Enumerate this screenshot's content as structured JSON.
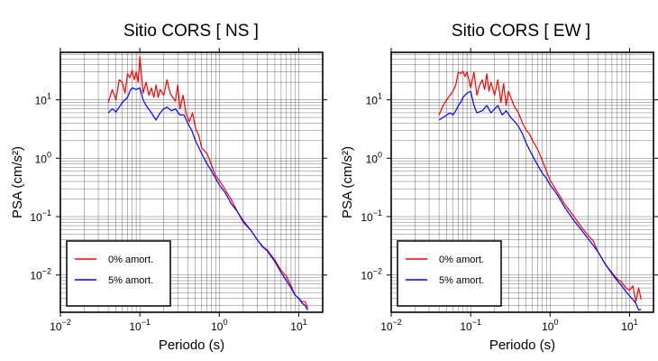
{
  "chart_data": [
    {
      "type": "line",
      "title": "Sitio CORS [ NS ]",
      "xlabel": "Periodo (s)",
      "ylabel": "PSA (cm/s²)",
      "xscale": "log",
      "yscale": "log",
      "xlim": [
        0.01,
        20
      ],
      "ylim": [
        0.0023,
        65
      ],
      "grid": true,
      "legend_position": "bottom-left",
      "x_ticks": [
        {
          "base": "10",
          "exp": "−2"
        },
        {
          "base": "10",
          "exp": "−1"
        },
        {
          "base": "10",
          "exp": "0"
        },
        {
          "base": "10",
          "exp": "1"
        }
      ],
      "y_ticks": [
        {
          "base": "10",
          "exp": "−2"
        },
        {
          "base": "10",
          "exp": "−1"
        },
        {
          "base": "10",
          "exp": "0"
        },
        {
          "base": "10",
          "exp": "1"
        }
      ],
      "series": [
        {
          "name": "0% amort.",
          "color": "#ff0000",
          "x": [
            0.04,
            0.045,
            0.05,
            0.055,
            0.06,
            0.065,
            0.07,
            0.075,
            0.08,
            0.085,
            0.09,
            0.095,
            0.1,
            0.105,
            0.11,
            0.12,
            0.13,
            0.14,
            0.15,
            0.16,
            0.17,
            0.18,
            0.2,
            0.22,
            0.24,
            0.26,
            0.28,
            0.3,
            0.32,
            0.35,
            0.38,
            0.42,
            0.46,
            0.5,
            0.55,
            0.6,
            0.7,
            0.8,
            0.9,
            1.0,
            1.2,
            1.4,
            1.7,
            2.0,
            2.5,
            3.0,
            3.5,
            4.0,
            5.0,
            6.0,
            7.0,
            8.0,
            9.0,
            10.0,
            11.0,
            12.0,
            13.0
          ],
          "y": [
            9,
            15,
            10,
            22,
            20,
            13,
            28,
            24,
            32,
            22,
            30,
            20,
            55,
            26,
            13,
            20,
            12,
            16,
            11,
            18,
            11,
            15,
            12,
            22,
            13,
            11,
            9.5,
            18,
            7,
            12,
            6,
            4.2,
            6,
            3.3,
            2.5,
            1.5,
            1.2,
            0.75,
            0.5,
            0.42,
            0.28,
            0.2,
            0.12,
            0.08,
            0.058,
            0.04,
            0.03,
            0.027,
            0.018,
            0.012,
            0.0095,
            0.0065,
            0.0045,
            0.004,
            0.0035,
            0.0035,
            0.0027
          ]
        },
        {
          "name": "5% amort.",
          "color": "#0000ff",
          "x": [
            0.04,
            0.045,
            0.05,
            0.055,
            0.06,
            0.065,
            0.07,
            0.075,
            0.08,
            0.09,
            0.1,
            0.11,
            0.12,
            0.14,
            0.16,
            0.18,
            0.2,
            0.22,
            0.25,
            0.28,
            0.32,
            0.36,
            0.4,
            0.45,
            0.5,
            0.6,
            0.7,
            0.8,
            0.9,
            1.0,
            1.2,
            1.4,
            1.7,
            2.0,
            2.5,
            3.0,
            3.5,
            4.0,
            5.0,
            6.0,
            7.0,
            8.0,
            9.0,
            10.0,
            11.0,
            12.0,
            13.0
          ],
          "y": [
            6,
            7,
            6.2,
            7.5,
            9,
            10,
            11,
            14,
            16,
            15,
            16,
            10,
            8,
            6,
            4.5,
            6,
            7,
            7.5,
            6.5,
            7,
            5.5,
            5.5,
            4,
            3,
            2,
            1.2,
            0.8,
            0.6,
            0.45,
            0.35,
            0.25,
            0.17,
            0.12,
            0.085,
            0.058,
            0.04,
            0.031,
            0.026,
            0.017,
            0.011,
            0.008,
            0.006,
            0.0045,
            0.004,
            0.0033,
            0.003,
            0.0025
          ]
        }
      ]
    },
    {
      "type": "line",
      "title": "Sitio CORS [ EW ]",
      "xlabel": "Periodo (s)",
      "ylabel": "PSA (cm/s²)",
      "xscale": "log",
      "yscale": "log",
      "xlim": [
        0.01,
        20
      ],
      "ylim": [
        0.0023,
        65
      ],
      "grid": true,
      "legend_position": "bottom-left",
      "x_ticks": [
        {
          "base": "10",
          "exp": "−2"
        },
        {
          "base": "10",
          "exp": "−1"
        },
        {
          "base": "10",
          "exp": "0"
        },
        {
          "base": "10",
          "exp": "1"
        }
      ],
      "y_ticks": [
        {
          "base": "10",
          "exp": "−2"
        },
        {
          "base": "10",
          "exp": "−1"
        },
        {
          "base": "10",
          "exp": "0"
        },
        {
          "base": "10",
          "exp": "1"
        }
      ],
      "series": [
        {
          "name": "0% amort.",
          "color": "#ff0000",
          "x": [
            0.04,
            0.045,
            0.05,
            0.055,
            0.06,
            0.065,
            0.07,
            0.075,
            0.08,
            0.085,
            0.09,
            0.1,
            0.11,
            0.12,
            0.13,
            0.14,
            0.15,
            0.16,
            0.17,
            0.18,
            0.2,
            0.22,
            0.24,
            0.26,
            0.28,
            0.3,
            0.32,
            0.35,
            0.4,
            0.45,
            0.5,
            0.55,
            0.6,
            0.7,
            0.8,
            0.9,
            1.0,
            1.2,
            1.5,
            2.0,
            2.5,
            3.0,
            3.5,
            4.0,
            5.0,
            6.0,
            7.0,
            8.0,
            9.0,
            10.0,
            11.0,
            12.0,
            13.0,
            14.0
          ],
          "y": [
            5.5,
            8,
            10,
            12,
            14,
            18,
            30,
            28,
            31,
            25,
            30,
            16,
            30,
            12,
            18,
            22,
            15,
            28,
            14,
            20,
            12,
            22,
            9,
            19,
            8,
            14,
            11,
            8,
            6,
            4,
            3,
            2.6,
            2,
            1.4,
            0.9,
            0.6,
            0.42,
            0.28,
            0.17,
            0.1,
            0.065,
            0.048,
            0.038,
            0.025,
            0.015,
            0.011,
            0.0085,
            0.0075,
            0.006,
            0.0055,
            0.0065,
            0.0035,
            0.006,
            0.0038
          ]
        },
        {
          "name": "5% amort.",
          "color": "#0000ff",
          "x": [
            0.04,
            0.045,
            0.05,
            0.055,
            0.06,
            0.065,
            0.07,
            0.075,
            0.08,
            0.09,
            0.1,
            0.11,
            0.12,
            0.14,
            0.16,
            0.18,
            0.2,
            0.22,
            0.25,
            0.28,
            0.32,
            0.36,
            0.4,
            0.45,
            0.5,
            0.6,
            0.7,
            0.8,
            0.9,
            1.0,
            1.2,
            1.5,
            2.0,
            2.5,
            3.0,
            3.5,
            4.0,
            5.0,
            6.0,
            7.0,
            8.0,
            9.0,
            10.0,
            11.0,
            12.0,
            13.0,
            14.0
          ],
          "y": [
            4.5,
            5,
            5.5,
            6,
            5.5,
            6.5,
            8,
            9,
            11,
            13,
            14,
            8,
            6,
            6.5,
            8,
            6,
            7,
            8,
            5.5,
            6.5,
            5,
            4.2,
            3.5,
            2.6,
            1.8,
            1.1,
            0.75,
            0.55,
            0.45,
            0.35,
            0.25,
            0.15,
            0.085,
            0.058,
            0.042,
            0.032,
            0.025,
            0.015,
            0.0105,
            0.008,
            0.0065,
            0.0052,
            0.0044,
            0.0038,
            0.0033,
            0.0025,
            0.0026
          ]
        }
      ]
    }
  ]
}
